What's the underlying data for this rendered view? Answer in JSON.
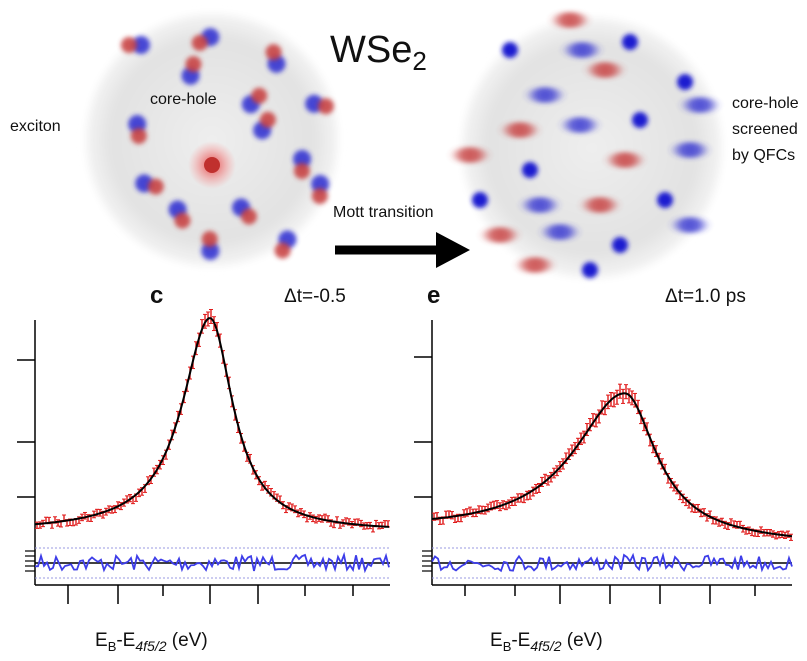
{
  "title": {
    "main": "WSe",
    "sub": "2"
  },
  "left_schematic": {
    "exciton": "exciton",
    "core_hole": "core-hole"
  },
  "right_schematic": {
    "lines": [
      "core-hole",
      "screened",
      "by QFCs"
    ]
  },
  "arrow_label": "Mott transition",
  "panels": [
    {
      "letter": "c",
      "delay": "Δt=-0.5",
      "xlabel": {
        "e": "E",
        "b": "B",
        "dash": "-E",
        "sub": "4f5/2",
        "unit": " (eV)"
      }
    },
    {
      "letter": "e",
      "delay": "Δt=1.0 ps",
      "xlabel": {
        "e": "E",
        "b": "B",
        "dash": "-E",
        "sub": "4f5/2",
        "unit": " (eV)"
      }
    }
  ]
}
